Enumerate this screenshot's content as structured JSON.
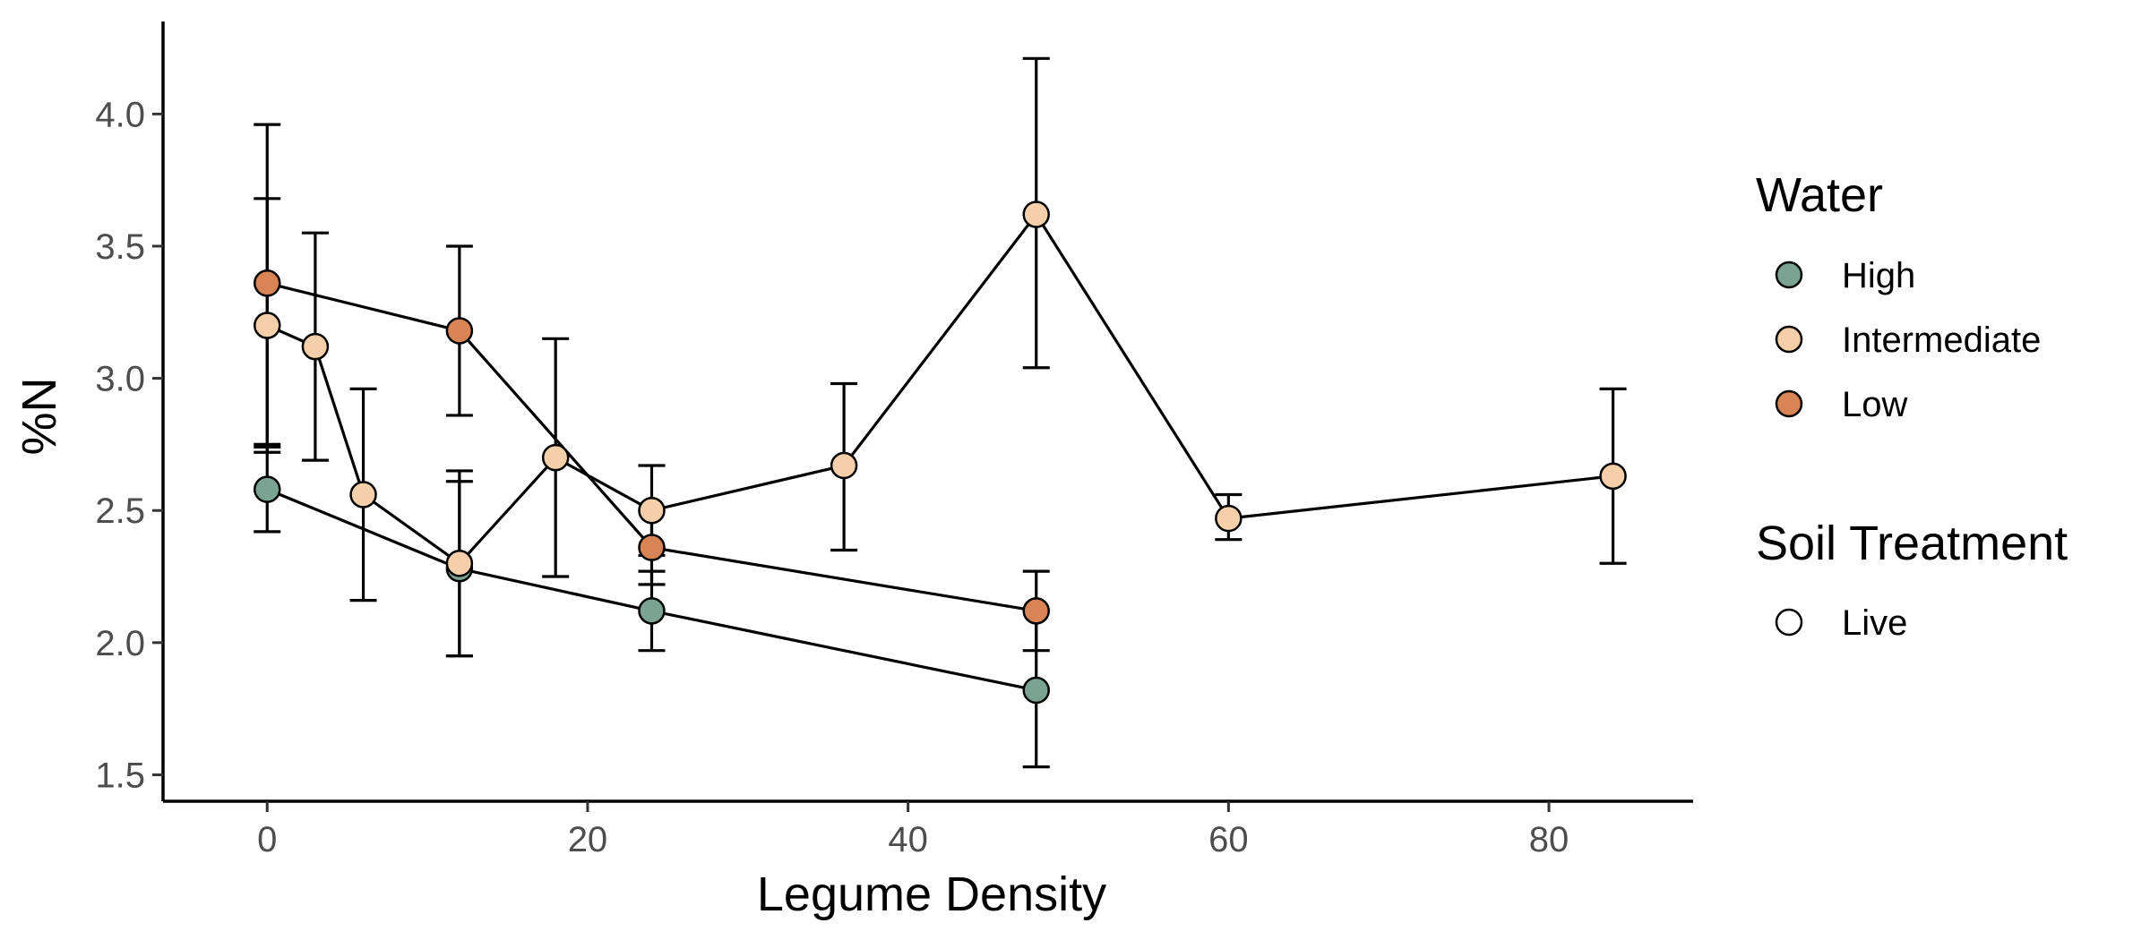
{
  "chart_data": {
    "type": "line",
    "xlabel": "Legume Density",
    "ylabel": "%N",
    "xlim": [
      -6.5,
      89
    ],
    "ylim": [
      1.4,
      4.35
    ],
    "x_ticks": [
      0,
      20,
      40,
      60,
      80
    ],
    "x_tick_labels": [
      "0",
      "20",
      "40",
      "60",
      "80"
    ],
    "y_ticks": [
      1.5,
      2.0,
      2.5,
      3.0,
      3.5,
      4.0
    ],
    "y_tick_labels": [
      "1.5",
      "2.0",
      "2.5",
      "3.0",
      "3.5",
      "4.0"
    ],
    "grid": false,
    "legend_placement": "right",
    "legend": {
      "water": {
        "title": "Water",
        "entries": [
          {
            "label": "High",
            "color": "#7BA393"
          },
          {
            "label": "Intermediate",
            "color": "#F5CFA9"
          },
          {
            "label": "Low",
            "color": "#D98454"
          }
        ]
      },
      "soil": {
        "title": "Soil Treatment",
        "entries": [
          {
            "label": "Live",
            "color": "#ffffff"
          }
        ]
      }
    },
    "series": [
      {
        "name": "High",
        "color": "#7BA393",
        "points": [
          {
            "x": 0,
            "y": 2.58,
            "err_low": 2.42,
            "err_high": 2.74
          },
          {
            "x": 12,
            "y": 2.28,
            "err_low": 1.95,
            "err_high": 2.61
          },
          {
            "x": 24,
            "y": 2.12,
            "err_low": 1.97,
            "err_high": 2.27
          },
          {
            "x": 48,
            "y": 1.82,
            "err_low": 1.53,
            "err_high": 2.12
          }
        ]
      },
      {
        "name": "Intermediate",
        "color": "#F5CFA9",
        "points": [
          {
            "x": 0,
            "y": 3.2,
            "err_low": 2.72,
            "err_high": 3.68
          },
          {
            "x": 3,
            "y": 3.12,
            "err_low": 2.69,
            "err_high": 3.55
          },
          {
            "x": 6,
            "y": 2.56,
            "err_low": 2.16,
            "err_high": 2.96
          },
          {
            "x": 12,
            "y": 2.3,
            "err_low": 1.95,
            "err_high": 2.65
          },
          {
            "x": 18,
            "y": 2.7,
            "err_low": 2.25,
            "err_high": 3.15
          },
          {
            "x": 24,
            "y": 2.5,
            "err_low": 2.33,
            "err_high": 2.67
          },
          {
            "x": 36,
            "y": 2.67,
            "err_low": 2.35,
            "err_high": 2.98
          },
          {
            "x": 48,
            "y": 3.62,
            "err_low": 3.04,
            "err_high": 4.21
          },
          {
            "x": 60,
            "y": 2.47,
            "err_low": 2.39,
            "err_high": 2.56
          },
          {
            "x": 84,
            "y": 2.63,
            "err_low": 2.3,
            "err_high": 2.96
          }
        ]
      },
      {
        "name": "Low",
        "color": "#D98454",
        "points": [
          {
            "x": 0,
            "y": 3.36,
            "err_low": 2.75,
            "err_high": 3.96
          },
          {
            "x": 12,
            "y": 3.18,
            "err_low": 2.86,
            "err_high": 3.5
          },
          {
            "x": 24,
            "y": 2.36,
            "err_low": 2.22,
            "err_high": 2.5
          },
          {
            "x": 48,
            "y": 2.12,
            "err_low": 1.97,
            "err_high": 2.27
          }
        ]
      }
    ]
  }
}
